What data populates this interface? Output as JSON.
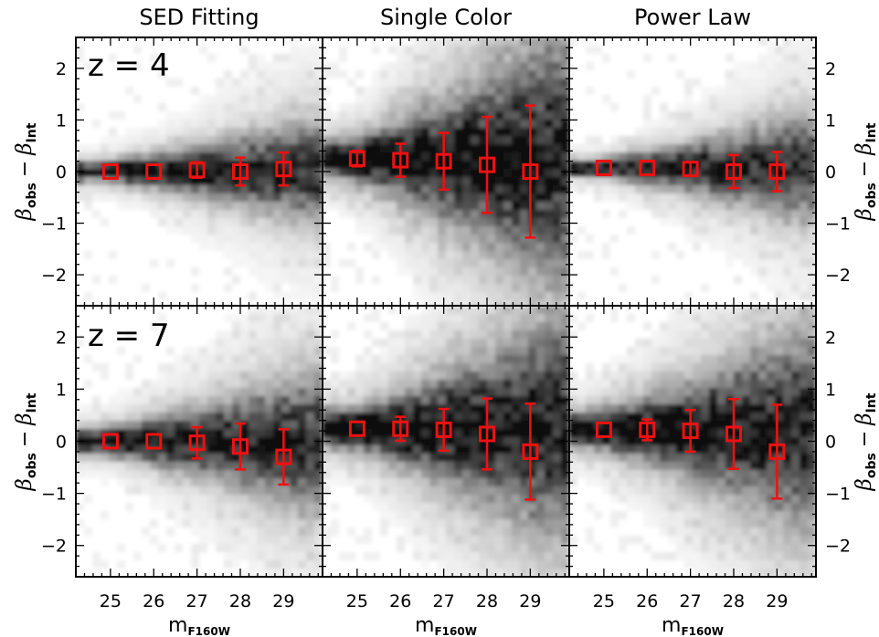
{
  "chart_data": [
    {
      "type": "scatter",
      "panel": "z4-sed",
      "column_title": "SED Fitting",
      "redshift_label": "z = 4",
      "xlabel": "m",
      "xlabel_sub": "F160W",
      "ylabel": "β",
      "ylabel_sub1": "obs",
      "ylabel_sep": "−",
      "ylabel_sub2": "Int",
      "xlim": [
        24.2,
        29.9
      ],
      "ylim": [
        -2.6,
        2.6
      ],
      "x": [
        25,
        26,
        27,
        28,
        29
      ],
      "y": [
        0.0,
        0.0,
        0.03,
        0.0,
        0.05
      ],
      "yerr": [
        0.0,
        0.0,
        0.15,
        0.27,
        0.32
      ],
      "density": {
        "center": 0.0,
        "spread_start": 0.12,
        "spread_end": 0.6,
        "outlier": 0.55
      }
    },
    {
      "type": "scatter",
      "panel": "z4-single",
      "column_title": "Single Color",
      "xlim": [
        24.2,
        29.9
      ],
      "ylim": [
        -2.6,
        2.6
      ],
      "x": [
        25,
        26,
        27,
        28,
        29
      ],
      "y": [
        0.25,
        0.22,
        0.2,
        0.13,
        0.0
      ],
      "yerr": [
        0.15,
        0.32,
        0.55,
        0.93,
        1.28
      ],
      "density": {
        "center": 0.24,
        "spread_start": 0.2,
        "spread_end": 1.4,
        "outlier": 0.9
      }
    },
    {
      "type": "scatter",
      "panel": "z4-power",
      "column_title": "Power Law",
      "xlim": [
        24.2,
        29.9
      ],
      "ylim": [
        -2.6,
        2.6
      ],
      "x": [
        25,
        26,
        27,
        28,
        29
      ],
      "y": [
        0.07,
        0.07,
        0.05,
        0.0,
        0.0
      ],
      "yerr": [
        0.0,
        0.0,
        0.13,
        0.32,
        0.38
      ],
      "density": {
        "center": 0.07,
        "spread_start": 0.1,
        "spread_end": 0.6,
        "outlier": 0.6
      }
    },
    {
      "type": "scatter",
      "panel": "z7-sed",
      "redshift_label": "z = 7",
      "xlim": [
        24.2,
        29.9
      ],
      "ylim": [
        -2.6,
        2.6
      ],
      "x": [
        25,
        26,
        27,
        28,
        29
      ],
      "y": [
        0.0,
        0.0,
        -0.03,
        -0.1,
        -0.3
      ],
      "yerr": [
        0.0,
        0.05,
        0.3,
        0.44,
        0.53
      ],
      "density": {
        "center": 0.0,
        "spread_start": 0.15,
        "spread_end": 0.8,
        "outlier": 0.6
      }
    },
    {
      "type": "scatter",
      "panel": "z7-single",
      "xlim": [
        24.2,
        29.9
      ],
      "ylim": [
        -2.6,
        2.6
      ],
      "x": [
        25,
        26,
        27,
        28,
        29
      ],
      "y": [
        0.24,
        0.24,
        0.22,
        0.14,
        -0.2
      ],
      "yerr": [
        0.0,
        0.23,
        0.4,
        0.68,
        0.92
      ],
      "density": {
        "center": 0.24,
        "spread_start": 0.2,
        "spread_end": 1.2,
        "outlier": 0.9
      }
    },
    {
      "type": "scatter",
      "panel": "z7-power",
      "xlim": [
        24.2,
        29.9
      ],
      "ylim": [
        -2.6,
        2.6
      ],
      "x": [
        25,
        26,
        27,
        28,
        29
      ],
      "y": [
        0.22,
        0.22,
        0.2,
        0.14,
        -0.2
      ],
      "yerr": [
        0.0,
        0.2,
        0.4,
        0.67,
        0.9
      ],
      "density": {
        "center": 0.22,
        "spread_start": 0.2,
        "spread_end": 1.1,
        "outlier": 0.8
      }
    }
  ],
  "axes": {
    "x_ticks": [
      25,
      26,
      27,
      28,
      29
    ],
    "y_ticks": [
      -2,
      -1,
      0,
      1,
      2
    ]
  },
  "colors": {
    "marker": "#ee1111",
    "frame": "#000000"
  }
}
